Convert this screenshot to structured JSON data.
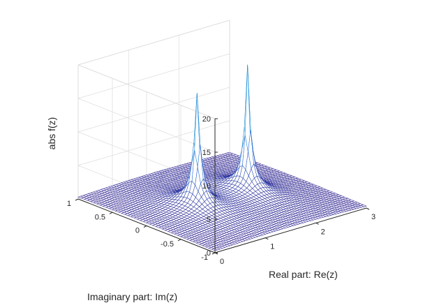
{
  "colors": {
    "background": "#ffffff",
    "grid": "#dcdcdc",
    "axis": "#262626",
    "surface_low": "#31218c",
    "surface_mid": "#2a6fd6",
    "surface_high": "#14c3d8"
  },
  "chart_data": {
    "type": "surface",
    "title": "",
    "function": "|f(z)| with two poles on the real axis",
    "xlabel": "Real part: Re(z)",
    "ylabel": "Imaginary part: Im(z)",
    "zlabel": "abs f(z)",
    "xlim": [
      0,
      3
    ],
    "ylim": [
      -1,
      1
    ],
    "zlim": [
      0,
      20
    ],
    "x_ticks": [
      "0",
      "1",
      "2",
      "3"
    ],
    "y_ticks": [
      "-1",
      "-0.5",
      "0",
      "0.5",
      "1"
    ],
    "z_ticks": [
      "0",
      "5",
      "10",
      "15",
      "20"
    ],
    "grid": true,
    "peaks": [
      {
        "re": 1,
        "im": 0,
        "height_clipped": 17.6
      },
      {
        "re": 2,
        "im": 0,
        "height_clipped": 19.6
      }
    ],
    "floor_value_approx": 0.5
  }
}
